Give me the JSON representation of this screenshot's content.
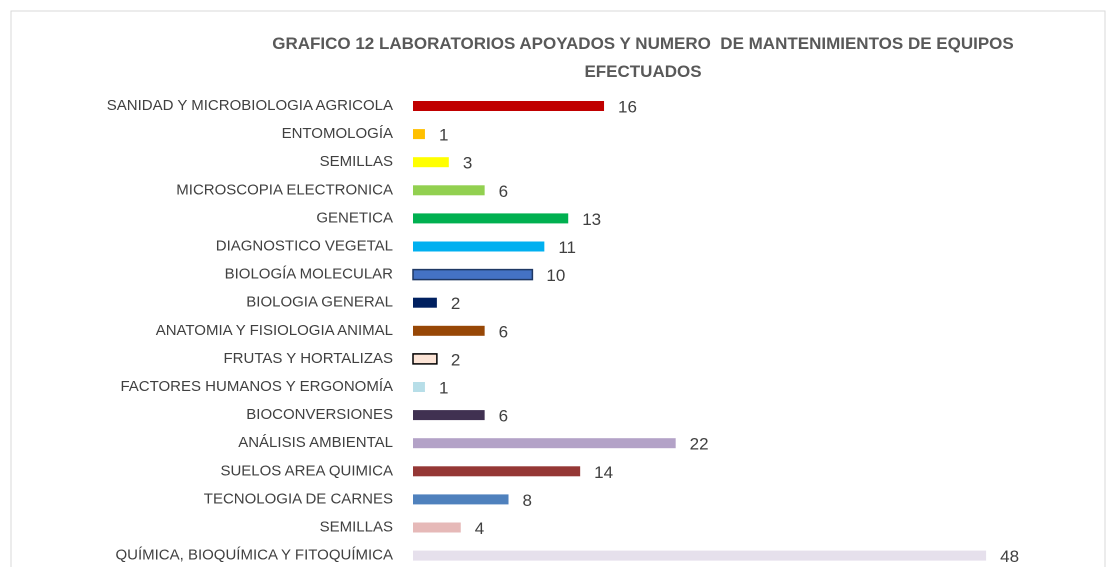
{
  "chart_data": {
    "type": "barh",
    "title": "GRAFICO 12 LABORATORIOS APOYADOS Y NUMERO  DE MANTENIMIENTOS DE EQUIPOS EFECTUADOS",
    "categories": [
      "SANIDAD Y MICROBIOLOGIA AGRICOLA",
      "ENTOMOLOGÍA",
      "SEMILLAS",
      "MICROSCOPIA ELECTRONICA",
      "GENETICA",
      "DIAGNOSTICO VEGETAL",
      "BIOLOGÍA MOLECULAR",
      "BIOLOGIA GENERAL",
      "ANATOMIA Y FISIOLOGIA  ANIMAL",
      "FRUTAS Y HORTALIZAS",
      "FACTORES HUMANOS Y ERGONOMÍA",
      "BIOCONVERSIONES",
      "ANÁLISIS AMBIENTAL",
      "SUELOS AREA QUIMICA",
      "TECNOLOGIA DE CARNES",
      "SEMILLAS",
      "QUÍMICA, BIOQUÍMICA Y FITOQUÍMICA"
    ],
    "values": [
      16,
      1,
      3,
      6,
      13,
      11,
      10,
      2,
      6,
      2,
      1,
      6,
      22,
      14,
      8,
      4,
      48
    ],
    "colors": [
      "#c00000",
      "#ffc000",
      "#ffff00",
      "#92d050",
      "#00b050",
      "#00b0f0",
      "#4472c4",
      "#002060",
      "#974706",
      "#fce4d6",
      "#b7dee8",
      "#403151",
      "#b3a2c7",
      "#953735",
      "#4f81bd",
      "#e6b9b8",
      "#e6e0ec"
    ],
    "edgecolors": [
      null,
      null,
      null,
      null,
      null,
      null,
      "#1f3864",
      null,
      null,
      "#000000",
      null,
      null,
      null,
      null,
      null,
      null,
      null
    ]
  }
}
